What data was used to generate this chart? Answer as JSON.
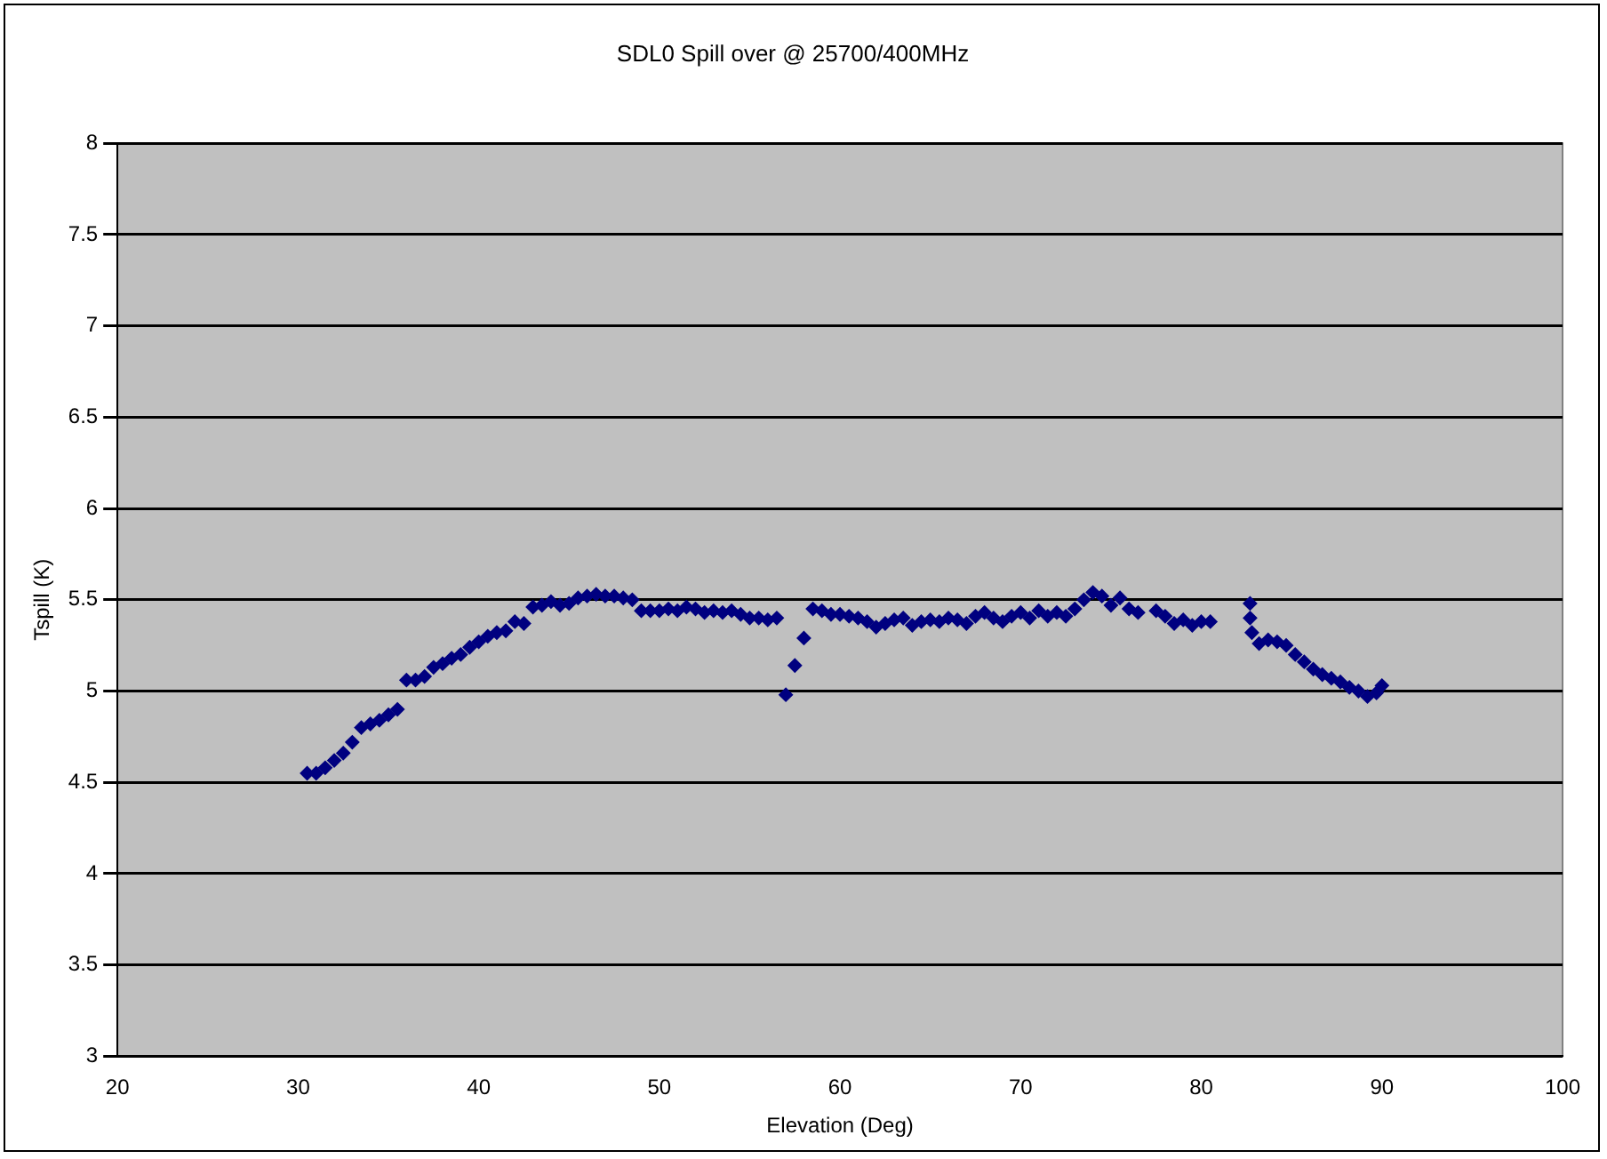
{
  "chart_data": {
    "type": "scatter",
    "title": "SDL0 Spill over @ 25700/400MHz",
    "xlabel": "Elevation (Deg)",
    "ylabel": "Tspill (K)",
    "x": [
      30.5,
      31,
      31.5,
      32,
      32.5,
      33,
      33.5,
      34,
      34.5,
      35,
      35.5,
      36,
      36.5,
      37,
      37.5,
      38,
      38.5,
      39,
      39.5,
      40,
      40.5,
      41,
      41.5,
      42,
      42.5,
      43,
      43.5,
      44,
      44.5,
      45,
      45.5,
      46,
      46.5,
      47,
      47.5,
      48,
      48.5,
      49,
      49.5,
      50,
      50.5,
      51,
      51.5,
      52,
      52.5,
      53,
      53.5,
      54,
      54.5,
      55,
      55.5,
      56,
      56.5,
      57,
      57.5,
      58,
      58.5,
      59,
      59.5,
      60,
      60.5,
      61,
      61.5,
      62,
      62.5,
      63,
      63.5,
      64,
      64.5,
      65,
      65.5,
      66,
      66.5,
      67,
      67.5,
      68,
      68.5,
      69,
      69.5,
      70,
      70.5,
      71,
      71.5,
      72,
      72.5,
      73,
      73.5,
      74,
      74.5,
      75,
      75.5,
      76,
      76.5,
      77.5,
      78,
      78.5,
      79,
      79.5,
      80,
      80.5,
      82.7,
      82.7,
      82.8,
      83.2,
      83.7,
      84.2,
      84.7,
      85.2,
      85.7,
      86.2,
      86.7,
      87.2,
      87.7,
      88.2,
      88.7,
      89.2,
      89.7,
      90
    ],
    "series": [
      {
        "color": "#000080",
        "values": [
          4.55,
          4.55,
          4.58,
          4.62,
          4.66,
          4.72,
          4.8,
          4.82,
          4.84,
          4.87,
          4.9,
          5.06,
          5.06,
          5.08,
          5.13,
          5.15,
          5.18,
          5.2,
          5.24,
          5.27,
          5.3,
          5.32,
          5.33,
          5.38,
          5.37,
          5.46,
          5.47,
          5.49,
          5.47,
          5.48,
          5.51,
          5.52,
          5.53,
          5.52,
          5.52,
          5.51,
          5.5,
          5.44,
          5.44,
          5.44,
          5.45,
          5.44,
          5.46,
          5.45,
          5.43,
          5.44,
          5.43,
          5.44,
          5.42,
          5.4,
          5.4,
          5.39,
          5.4,
          4.98,
          5.14,
          5.29,
          5.45,
          5.44,
          5.42,
          5.42,
          5.41,
          5.4,
          5.38,
          5.35,
          5.37,
          5.39,
          5.4,
          5.36,
          5.38,
          5.39,
          5.38,
          5.4,
          5.39,
          5.37,
          5.41,
          5.43,
          5.4,
          5.38,
          5.41,
          5.43,
          5.4,
          5.44,
          5.41,
          5.43,
          5.41,
          5.45,
          5.5,
          5.54,
          5.52,
          5.47,
          5.51,
          5.45,
          5.43,
          5.44,
          5.41,
          5.37,
          5.39,
          5.36,
          5.38,
          5.38,
          5.48,
          5.4,
          5.32,
          5.26,
          5.28,
          5.27,
          5.25,
          5.2,
          5.16,
          5.12,
          5.09,
          5.07,
          5.05,
          5.02,
          5.0,
          4.97,
          4.99,
          5.03
        ]
      }
    ],
    "xlim": [
      20,
      100
    ],
    "xticks": [
      20,
      30,
      40,
      50,
      60,
      70,
      80,
      90,
      100
    ],
    "ylim": [
      3,
      8
    ],
    "yticks": [
      3,
      3.5,
      4,
      4.5,
      5,
      5.5,
      6,
      6.5,
      7,
      7.5,
      8
    ],
    "grid": "y",
    "legend": false,
    "marker": "diamond"
  }
}
